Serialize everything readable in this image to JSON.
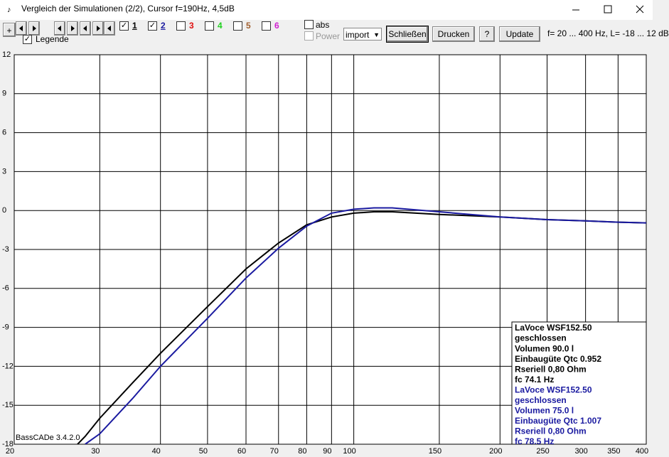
{
  "window": {
    "title": "Vergleich der Simulationen (2/2), Cursor f=190Hz, 4,5dB"
  },
  "toolbar": {
    "plus": "+",
    "toggles": [
      {
        "label": "1",
        "checked": true,
        "color": "#000000"
      },
      {
        "label": "2",
        "checked": true,
        "color": "#1a1aa0"
      },
      {
        "label": "3",
        "checked": false,
        "color": "#e01010"
      },
      {
        "label": "4",
        "checked": false,
        "color": "#20d020"
      },
      {
        "label": "5",
        "checked": false,
        "color": "#a06030"
      },
      {
        "label": "6",
        "checked": false,
        "color": "#d020d0"
      }
    ],
    "abs": "abs",
    "power": "Power",
    "select": "import",
    "close": "Schließen",
    "print": "Drucken",
    "help": "?",
    "update": "Update",
    "range_info": "f= 20 ... 400 Hz, L= -18 ... 12 dB",
    "legend_toggle": "Legende"
  },
  "chart_data": {
    "type": "line",
    "xscale": "log",
    "grid": true,
    "footer": "BassCADe 3.4.2.0",
    "x": [
      27,
      28,
      30,
      35,
      40,
      50,
      60,
      70,
      80,
      90,
      100,
      110,
      120,
      150,
      200,
      250,
      300,
      350,
      400
    ],
    "series": [
      {
        "name": "LaVoce WSF152.50",
        "color": "#000000",
        "info": [
          "LaVoce WSF152.50",
          "geschlossen",
          "Volumen 90.0 l",
          "Einbaugüte Qtc 0.952",
          "Rseriell 0,80 Ohm",
          "fc 74.1 Hz"
        ],
        "values": [
          -18,
          -17.4,
          -16,
          -13.3,
          -11,
          -7.4,
          -4.5,
          -2.5,
          -1.1,
          -0.5,
          -0.2,
          -0.1,
          -0.1,
          -0.3,
          -0.5,
          -0.7,
          -0.8,
          -0.9,
          -0.95
        ]
      },
      {
        "name": "LaVoce WSF152.50",
        "color": "#1a1aa0",
        "info": [
          "LaVoce WSF152.50",
          "geschlossen",
          "Volumen 75.0 l",
          "Einbaugüte Qtc 1.007",
          "Rseriell 0,80 Ohm",
          "fc 78.5 Hz"
        ],
        "values": [
          null,
          -18,
          -17.2,
          -14.5,
          -12,
          -8.3,
          -5.2,
          -2.9,
          -1.2,
          -0.2,
          0.1,
          0.2,
          0.2,
          -0.1,
          -0.5,
          -0.7,
          -0.8,
          -0.9,
          -0.95
        ]
      }
    ],
    "xlim": [
      20,
      400
    ],
    "xticks": [
      20,
      30,
      40,
      50,
      60,
      70,
      80,
      90,
      100,
      150,
      200,
      250,
      300,
      350,
      400
    ],
    "ylim": [
      -18,
      12
    ],
    "yticks": [
      12,
      9,
      6,
      3,
      0,
      -3,
      -6,
      -9,
      -12,
      -15,
      -18
    ]
  }
}
